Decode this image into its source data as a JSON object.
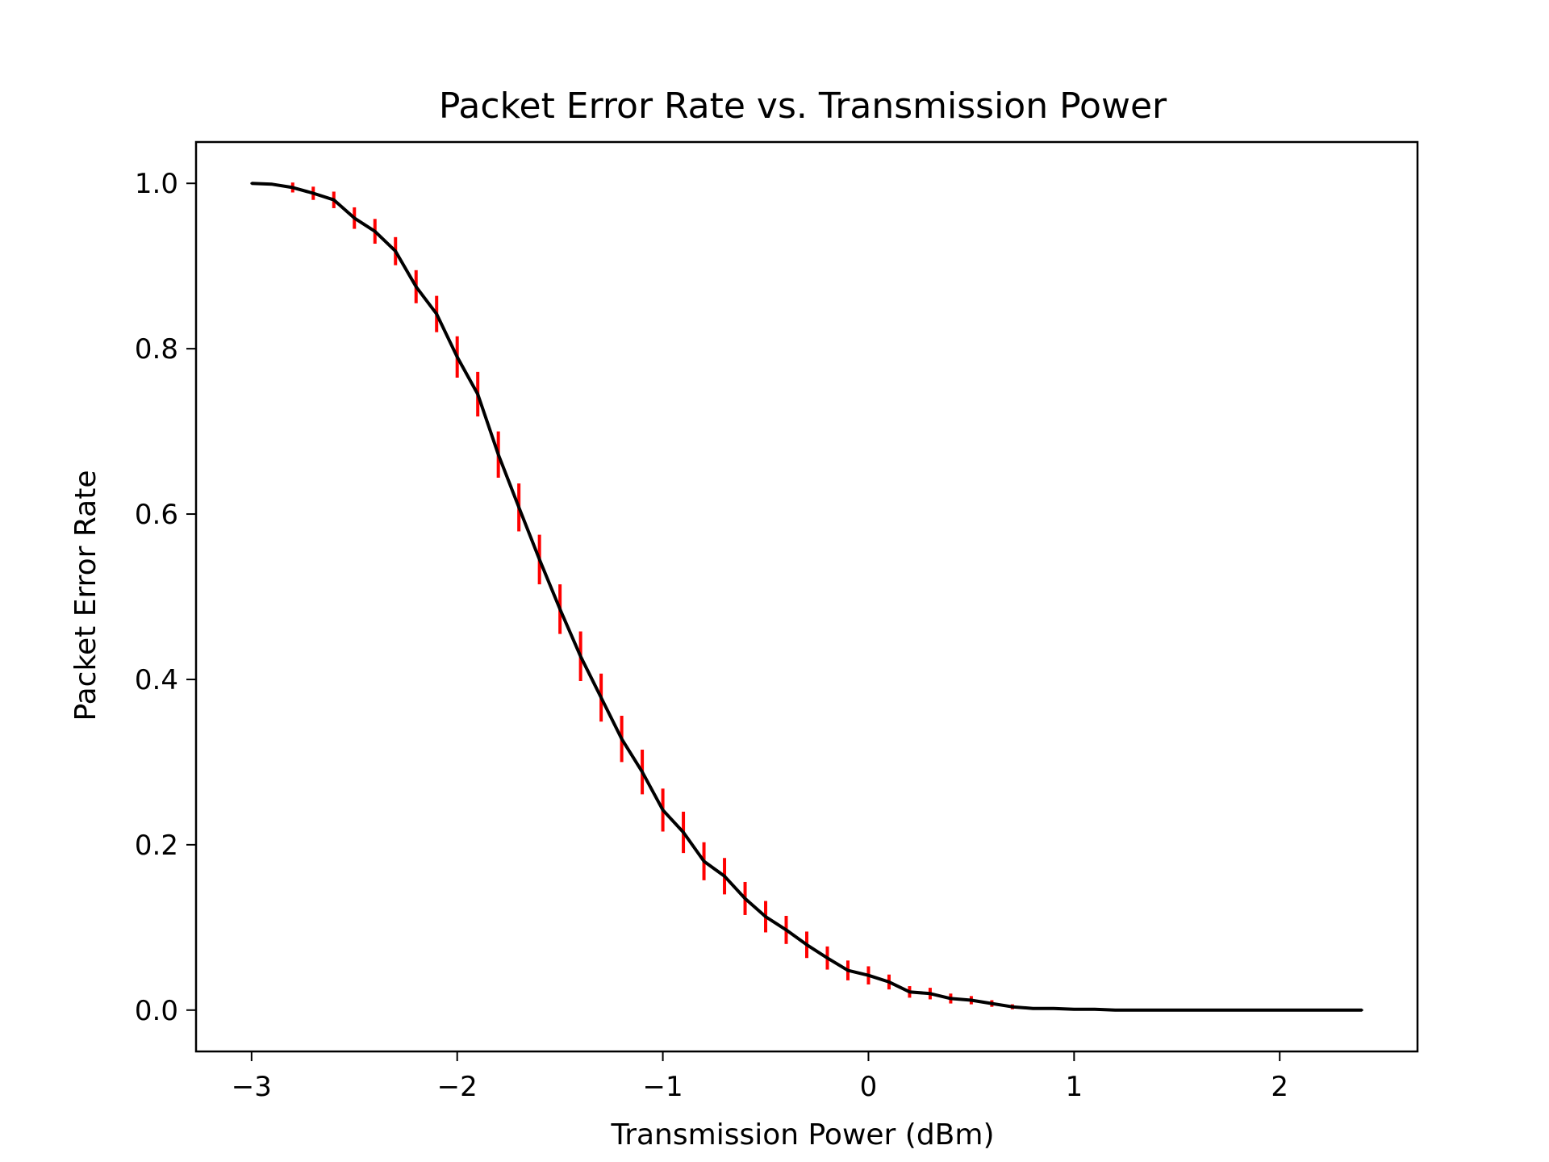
{
  "chart_data": {
    "type": "line",
    "title": "Packet Error Rate vs. Transmission Power",
    "xlabel": "Transmission Power (dBm)",
    "ylabel": "Packet Error Rate",
    "xlim": [
      -3.27,
      2.67
    ],
    "ylim": [
      -0.05,
      1.05
    ],
    "x_ticks": [
      -3,
      -2,
      -1,
      0,
      1,
      2
    ],
    "x_tick_labels": [
      "−3",
      "−2",
      "−1",
      "0",
      "1",
      "2"
    ],
    "y_ticks": [
      0.0,
      0.2,
      0.4,
      0.6,
      0.8,
      1.0
    ],
    "y_tick_labels": [
      "0.0",
      "0.2",
      "0.4",
      "0.6",
      "0.8",
      "1.0"
    ],
    "grid": false,
    "series": [
      {
        "color": "#000000",
        "error_color": "#ff0000",
        "x": [
          -3.0,
          -2.9,
          -2.8,
          -2.7,
          -2.6,
          -2.5,
          -2.4,
          -2.3,
          -2.2,
          -2.1,
          -2.0,
          -1.9,
          -1.8,
          -1.7,
          -1.6,
          -1.5,
          -1.4,
          -1.3,
          -1.2,
          -1.1,
          -1.0,
          -0.9,
          -0.8,
          -0.7,
          -0.6,
          -0.5,
          -0.4,
          -0.3,
          -0.2,
          -0.1,
          0.0,
          0.1,
          0.2,
          0.3,
          0.4,
          0.5,
          0.6,
          0.7,
          0.8,
          0.9,
          1.0,
          1.1,
          1.2,
          1.3,
          1.4,
          1.5,
          1.6,
          1.7,
          1.8,
          1.9,
          2.0,
          2.1,
          2.2,
          2.3,
          2.4
        ],
        "y": [
          1.0,
          0.999,
          0.995,
          0.988,
          0.98,
          0.958,
          0.942,
          0.918,
          0.875,
          0.842,
          0.79,
          0.745,
          0.672,
          0.608,
          0.545,
          0.485,
          0.428,
          0.378,
          0.328,
          0.288,
          0.242,
          0.215,
          0.18,
          0.162,
          0.135,
          0.113,
          0.097,
          0.079,
          0.063,
          0.048,
          0.042,
          0.034,
          0.022,
          0.02,
          0.014,
          0.012,
          0.008,
          0.004,
          0.002,
          0.002,
          0.001,
          0.001,
          0.0,
          0.0,
          0.0,
          0.0,
          0.0,
          0.0,
          0.0,
          0.0,
          0.0,
          0.0,
          0.0,
          0.0,
          0.0
        ],
        "yerr": [
          0.0,
          0.0,
          0.006,
          0.008,
          0.01,
          0.013,
          0.015,
          0.017,
          0.02,
          0.022,
          0.025,
          0.027,
          0.028,
          0.029,
          0.03,
          0.03,
          0.03,
          0.029,
          0.028,
          0.027,
          0.026,
          0.025,
          0.023,
          0.022,
          0.02,
          0.019,
          0.017,
          0.016,
          0.014,
          0.012,
          0.011,
          0.009,
          0.007,
          0.007,
          0.006,
          0.005,
          0.004,
          0.003,
          0.0,
          0.0,
          0.0,
          0.0,
          0.0,
          0.0,
          0.0,
          0.0,
          0.0,
          0.0,
          0.0,
          0.0,
          0.0,
          0.0,
          0.0,
          0.0,
          0.0
        ]
      }
    ]
  }
}
